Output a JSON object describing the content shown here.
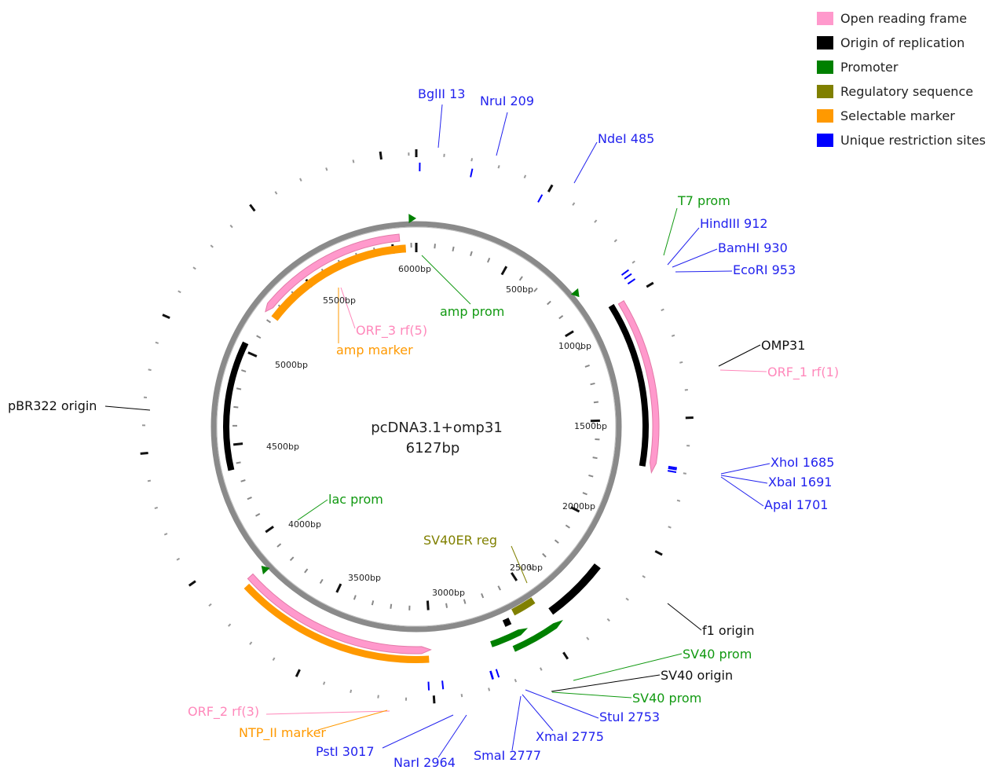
{
  "plasmid": {
    "name": "pcDNA3.1+omp31",
    "length": "6127bp",
    "length_bp": 6127
  },
  "legend": [
    {
      "label": "Open reading frame",
      "color": "#ff99cc"
    },
    {
      "label": "Origin of replication",
      "color": "#000000"
    },
    {
      "label": "Promoter",
      "color": "#008000"
    },
    {
      "label": "Regulatory sequence",
      "color": "#808000"
    },
    {
      "label": "Selectable marker",
      "color": "#ff9900"
    },
    {
      "label": "Unique restriction sites",
      "color": "#0000ff"
    }
  ],
  "colors": {
    "backbone": "#888888",
    "orf": "#ff99cc",
    "origin": "#000000",
    "promoter": "#008000",
    "regulatory": "#808000",
    "marker": "#ff9900",
    "site": "#0000ff",
    "orf_label": "#ff88bb",
    "promoter_label": "#119911",
    "site_label": "#2222ee"
  },
  "ruler": {
    "labels": [
      "500bp",
      "1000bp",
      "1500bp",
      "2000bp",
      "2500bp",
      "3000bp",
      "3500bp",
      "4000bp",
      "4500bp",
      "5000bp",
      "5500bp",
      "6000bp"
    ]
  },
  "features": [
    {
      "id": "orf-1",
      "type": "orf",
      "start": 1000,
      "end": 1720,
      "strand": 1
    },
    {
      "id": "omp31",
      "type": "origin",
      "start": 990,
      "end": 1700,
      "strand": 0
    },
    {
      "id": "orf-2",
      "type": "orf",
      "start": 3000,
      "end": 3880,
      "strand": -1
    },
    {
      "id": "ntp-ii",
      "type": "marker",
      "start": 3010,
      "end": 3860,
      "strand": 0
    },
    {
      "id": "orf-3",
      "type": "orf",
      "start": 5230,
      "end": 6040,
      "strand": -1
    },
    {
      "id": "amp-marker",
      "type": "marker",
      "start": 5230,
      "end": 6070,
      "strand": 0
    },
    {
      "id": "pbr322-origin",
      "type": "origin",
      "start": 4370,
      "end": 5040,
      "strand": 0
    },
    {
      "id": "f1-origin",
      "type": "origin",
      "start": 2170,
      "end": 2450,
      "strand": 0
    },
    {
      "id": "sv40er-reg",
      "type": "regulatory",
      "start": 2485,
      "end": 2595,
      "strand": 0
    },
    {
      "id": "sv40-origin",
      "type": "origin",
      "start": 2625,
      "end": 2655,
      "strand": 0
    },
    {
      "id": "sv40-prom-1",
      "type": "promoter",
      "start": 2430,
      "end": 2660,
      "strand": -1
    },
    {
      "id": "sv40-prom-2",
      "type": "promoter",
      "start": 2570,
      "end": 2740,
      "strand": -1
    }
  ],
  "arrows": [
    {
      "id": "amp-prom-arrow",
      "pos": 6105,
      "type": "promoter"
    },
    {
      "id": "t7-arrow",
      "pos": 855,
      "type": "promoter"
    },
    {
      "id": "lac-arrow",
      "pos": 3860,
      "type": "promoter"
    }
  ],
  "sites": [
    {
      "name": "BglII",
      "pos": 13,
      "text": "BglII 13"
    },
    {
      "name": "NruI",
      "pos": 209,
      "text": "NruI 209"
    },
    {
      "name": "NdeI",
      "pos": 485,
      "text": "NdeI 485"
    },
    {
      "name": "HindIII",
      "pos": 912,
      "text": "HindIII 912"
    },
    {
      "name": "BamHI",
      "pos": 930,
      "text": "BamHI 930"
    },
    {
      "name": "EcoRI",
      "pos": 953,
      "text": "EcoRI 953"
    },
    {
      "name": "XhoI",
      "pos": 1685,
      "text": "XhoI 1685"
    },
    {
      "name": "XbaI",
      "pos": 1691,
      "text": "XbaI 1691"
    },
    {
      "name": "ApaI",
      "pos": 1701,
      "text": "ApaI 1701"
    },
    {
      "name": "StuI",
      "pos": 2753,
      "text": "StuI 2753"
    },
    {
      "name": "XmaI",
      "pos": 2775,
      "text": "XmaI 2775"
    },
    {
      "name": "SmaI",
      "pos": 2777,
      "text": "SmaI 2777"
    },
    {
      "name": "NarI",
      "pos": 2964,
      "text": "NarI 2964"
    },
    {
      "name": "PstI",
      "pos": 3017,
      "text": "PstI 3017"
    }
  ],
  "labels": {
    "t7_prom": "T7 prom",
    "omp31": "OMP31",
    "orf_1": "ORF_1 rf(1)",
    "f1_origin": "f1 origin",
    "sv40_prom_1": "SV40 prom",
    "sv40_origin": "SV40 origin",
    "sv40_prom_2": "SV40 prom",
    "sv40er_reg": "SV40ER reg",
    "lac_prom": "lac prom",
    "pbr322_origin": "pBR322 origin",
    "orf_3": "ORF_3 rf(5)",
    "amp_marker": "amp marker",
    "amp_prom": "amp prom",
    "orf_2": "ORF_2 rf(3)",
    "ntp_ii_marker": "NTP_II marker"
  }
}
